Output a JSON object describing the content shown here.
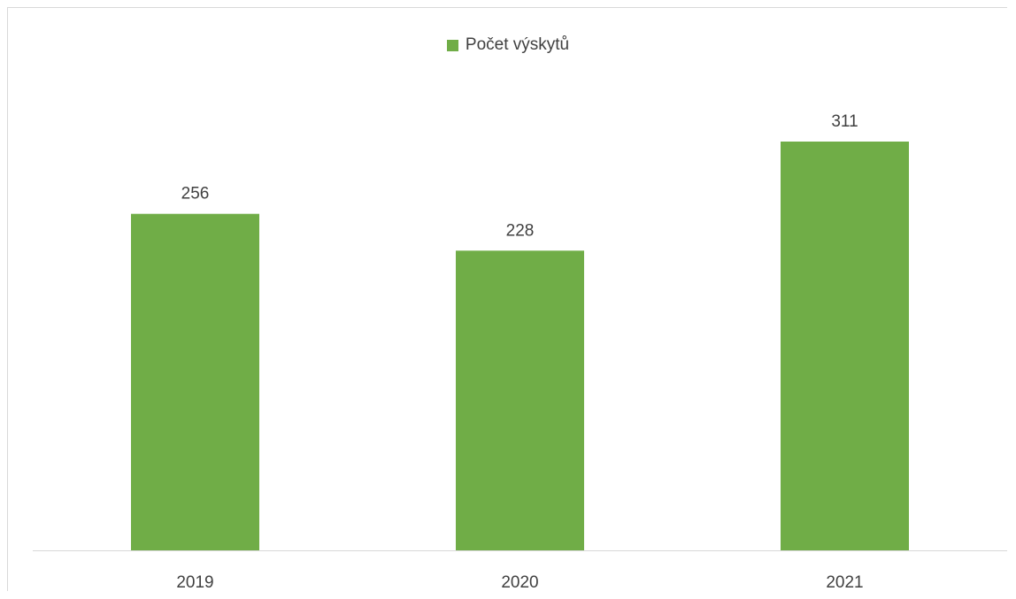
{
  "chart_data": {
    "type": "bar",
    "categories": [
      "2019",
      "2020",
      "2021"
    ],
    "series": [
      {
        "name": "Počet výskytů",
        "values": [
          256,
          228,
          311
        ],
        "color": "#70ad47"
      }
    ],
    "data_labels": [
      "256",
      "228",
      "311"
    ],
    "legend": {
      "position": "top-center"
    },
    "grid": false
  }
}
